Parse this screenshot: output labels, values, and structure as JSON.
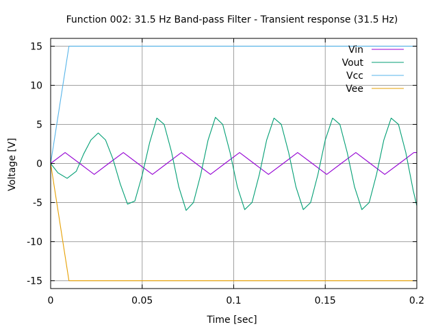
{
  "chart_data": {
    "type": "line",
    "title": "Function 002: 31.5 Hz Band-pass Filter - Transient response (31.5 Hz)",
    "xlabel": "Time [sec]",
    "ylabel": "Voltage [V]",
    "xlim": [
      0,
      0.2
    ],
    "ylim": [
      -16,
      16
    ],
    "xticks": [
      0,
      0.05,
      0.1,
      0.15,
      0.2
    ],
    "xtick_labels": [
      "0",
      "0.05",
      "0.1",
      "0.15",
      "0.2"
    ],
    "yticks": [
      -15,
      -10,
      -5,
      0,
      5,
      10,
      15
    ],
    "ytick_labels": [
      "-15",
      "-10",
      "-5",
      "0",
      "5",
      "10",
      "15"
    ],
    "grid": true,
    "legend_position": "top-right",
    "series": [
      {
        "name": "Vin",
        "color": "#9400d3",
        "x": [
          0,
          0.0079,
          0.0159,
          0.0238,
          0.0317,
          0.0397,
          0.0476,
          0.0556,
          0.0635,
          0.0714,
          0.0794,
          0.0873,
          0.0952,
          0.1032,
          0.1111,
          0.119,
          0.127,
          0.1349,
          0.1429,
          0.1508,
          0.1587,
          0.1667,
          0.1746,
          0.1825,
          0.1905,
          0.1984,
          0.2
        ],
        "y": [
          0,
          1.4,
          0,
          -1.4,
          0,
          1.4,
          0,
          -1.4,
          0,
          1.4,
          0,
          -1.4,
          0,
          1.4,
          0,
          -1.4,
          0,
          1.4,
          0,
          -1.4,
          0,
          1.4,
          0,
          -1.4,
          0,
          1.4,
          1.4
        ]
      },
      {
        "name": "Vout",
        "color": "#009e73",
        "x": [
          0,
          0.004,
          0.009,
          0.014,
          0.018,
          0.022,
          0.026,
          0.03,
          0.034,
          0.038,
          0.042,
          0.046,
          0.05,
          0.054,
          0.058,
          0.062,
          0.066,
          0.07,
          0.074,
          0.078,
          0.082,
          0.086,
          0.09,
          0.094,
          0.098,
          0.102,
          0.106,
          0.11,
          0.114,
          0.118,
          0.122,
          0.126,
          0.13,
          0.134,
          0.138,
          0.142,
          0.146,
          0.15,
          0.154,
          0.158,
          0.162,
          0.166,
          0.17,
          0.174,
          0.178,
          0.182,
          0.186,
          0.19,
          0.194,
          0.198,
          0.2
        ],
        "y": [
          0,
          -1.2,
          -1.9,
          -1.0,
          1.2,
          3.0,
          3.9,
          3.0,
          0.6,
          -2.6,
          -5.2,
          -4.8,
          -1.5,
          2.6,
          5.8,
          5.0,
          1.5,
          -3.0,
          -6.0,
          -5.0,
          -1.4,
          3.0,
          5.9,
          5.0,
          1.4,
          -3.0,
          -5.9,
          -5.0,
          -1.4,
          3.0,
          5.8,
          5.0,
          1.4,
          -3.0,
          -5.9,
          -5.0,
          -1.4,
          3.0,
          5.8,
          5.0,
          1.4,
          -3.0,
          -5.9,
          -5.0,
          -1.4,
          3.0,
          5.8,
          5.0,
          1.4,
          -3.4,
          -5.4
        ]
      },
      {
        "name": "Vcc",
        "color": "#56b4e9",
        "x": [
          0,
          0.01,
          0.2
        ],
        "y": [
          0,
          15,
          15
        ]
      },
      {
        "name": "Vee",
        "color": "#e69f00",
        "x": [
          0,
          0.01,
          0.2
        ],
        "y": [
          0,
          -15,
          -15
        ]
      }
    ]
  }
}
